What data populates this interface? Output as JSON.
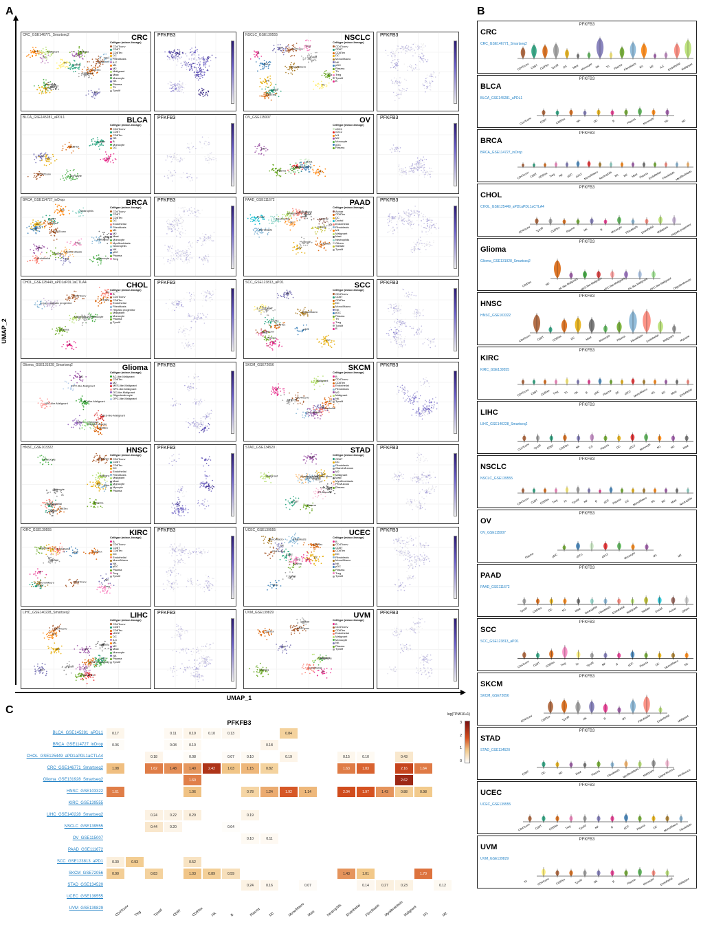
{
  "gene": "PFKFB3",
  "axes": {
    "x": "UMAP_1",
    "y": "UMAP_2"
  },
  "gradient": {
    "low": "#eeeeee",
    "mid": "#6b5fc7",
    "high": "#2a1a73"
  },
  "celltype_palette": {
    "CD4Tconv": "#a65628",
    "Treg": "#f781bf",
    "Tprolif": "#999999",
    "CD8T": "#1b9e77",
    "CD8Tex": "#d95f02",
    "NK": "#7570b3",
    "B": "#e7298a",
    "Plasma": "#66a61e",
    "DC": "#e6ab02",
    "Mono/Macro": "#a6761d",
    "Mast": "#666666",
    "Neutrophils": "#8dd3c7",
    "Endothelial": "#fb8072",
    "Fibroblasts": "#80b1d3",
    "Myofibroblasts": "#fdb462",
    "Malignant": "#b3de69",
    "pDC": "#377eb8",
    "Monocyte": "#4daf4a",
    "M1": "#ff7f00",
    "M2": "#984ea3",
    "ILC": "#bc80bd",
    "cDC1": "#ccebc5",
    "cDC2": "#e41a1c",
    "Th": "#ffed6f",
    "Acinar": "#8c564b",
    "Ductal": "#17becf",
    "Stellate": "#bcbd22",
    "Others": "#c7c7c7",
    "AC-like-Malignant": "#2ca02c",
    "OC-like-Malignant": "#9467bd",
    "MES-like-Malignant": "#d62728",
    "NPC-like-Malignant": "#ff9896",
    "OPC-like-Malignant": "#aec7e8",
    "Oligodendrocyte": "#98df8a",
    "Hepatic progenitor": "#c5b0d5",
    "Pit-Mucous": "#f7b6d2"
  },
  "panelA": [
    {
      "abbr": "CRC",
      "dataset": "CRC_GSE146771_Smartseq2",
      "celltypes": [
        "CD4Tconv",
        "CD8T",
        "CD8Tex",
        "DC",
        "Fibroblasts",
        "ILC",
        "M1",
        "M2",
        "Malignant",
        "Mast",
        "Monocyte",
        "NK",
        "Plasma",
        "Th",
        "Tprolif"
      ]
    },
    {
      "abbr": "NSCLC",
      "dataset": "NSCLC_GSE139555",
      "celltypes": [
        "CD4Tconv",
        "CD8T",
        "CD8Tex",
        "DC",
        "Mono/Macro",
        "NK",
        "pDC",
        "Plasma",
        "Th",
        "Treg",
        "Tprolif",
        "B"
      ]
    },
    {
      "abbr": "BLCA",
      "dataset": "BLCA_GSE145281_aPDL1",
      "celltypes": [
        "CD4Tconv",
        "CD8T",
        "CD8Tex",
        "NK",
        "B",
        "Monocyte",
        "DC"
      ]
    },
    {
      "abbr": "OV",
      "dataset": "OV_GSE115007",
      "celltypes": [
        "cDC1",
        "cDC2",
        "M1",
        "M2",
        "Monocyte",
        "pDC",
        "Plasma"
      ]
    },
    {
      "abbr": "BRCA",
      "dataset": "BRCA_GSE114727_inDrop",
      "celltypes": [
        "CD4Tconv",
        "CD8T",
        "CD8Tex",
        "DC",
        "Endothelial",
        "Fibroblasts",
        "M1",
        "M2",
        "Mast",
        "Monocyte",
        "Myofibroblasts",
        "Neutrophils",
        "NK",
        "pDC",
        "Plasma",
        "Treg"
      ]
    },
    {
      "abbr": "PAAD",
      "dataset": "PAAD_GSE111672",
      "celltypes": [
        "Acinar",
        "CD8Tex",
        "DC",
        "Ductal",
        "Endothelial",
        "Fibroblasts",
        "M1",
        "Malignant",
        "Mast",
        "Neutrophils",
        "Others",
        "Stellate",
        "Tprolif"
      ]
    },
    {
      "abbr": "CHOL",
      "dataset": "CHOL_GSE125449_aPD1aPDL1aCTLA4",
      "celltypes": [
        "B",
        "CD4Tconv",
        "CD8Tex",
        "Endothelial",
        "Fibroblasts",
        "Hepatic progenitor",
        "Malignant",
        "Monocyte",
        "Plasma",
        "Tprolif"
      ]
    },
    {
      "abbr": "SCC",
      "dataset": "SCC_GSE123813_aPD1",
      "celltypes": [
        "CD4Tconv",
        "CD8T",
        "CD8Tex",
        "DC",
        "Mono/Macro",
        "NK",
        "pDC",
        "Plasma",
        "Th",
        "Treg",
        "Tprolif",
        "B"
      ]
    },
    {
      "abbr": "Glioma",
      "dataset": "Glioma_GSE131928_Smartseq2",
      "celltypes": [
        "AC-like-Malignant",
        "CD8Tex",
        "M2",
        "MES-like-Malignant",
        "NPC-like-Malignant",
        "OC-like-Malignant",
        "Oligodendrocyte",
        "OPC-like-Malignant"
      ]
    },
    {
      "abbr": "SKCM",
      "dataset": "SKCM_GSE72056",
      "celltypes": [
        "B",
        "CD4Tconv",
        "CD8Tex",
        "Endothelial",
        "Fibroblasts",
        "M2",
        "Malignant",
        "NK",
        "Tprolif"
      ]
    },
    {
      "abbr": "HNSC",
      "dataset": "HNSC_GSE103322",
      "celltypes": [
        "CD4Tconv",
        "CD8T",
        "CD8Tex",
        "DC",
        "Endothelial",
        "Fibroblasts",
        "Malignant",
        "Mast",
        "Monocyte",
        "Myocyte",
        "Plasma"
      ]
    },
    {
      "abbr": "STAD",
      "dataset": "STAD_GSE134520",
      "celltypes": [
        "CD8T",
        "DC",
        "Fibroblasts",
        "Gland-Mucous",
        "M2",
        "Malignant",
        "Mast",
        "Myofibroblasts",
        "Pit-Mucous",
        "Plasma"
      ]
    },
    {
      "abbr": "KIRC",
      "dataset": "KIRC_GSE139555",
      "celltypes": [
        "B",
        "CD4Tconv",
        "CD8T",
        "CD8Tex",
        "DC",
        "Endothelial",
        "Mono/Macro",
        "NK",
        "pDC",
        "Plasma",
        "Treg",
        "Tprolif"
      ]
    },
    {
      "abbr": "UCEC",
      "dataset": "UCEC_GSE139555",
      "celltypes": [
        "B",
        "CD4Tconv",
        "CD8T",
        "CD8Tex",
        "DC",
        "Fibroblasts",
        "Mono/Macro",
        "NK",
        "pDC",
        "Plasma",
        "Treg",
        "Tprolif"
      ]
    },
    {
      "abbr": "LIHC",
      "dataset": "LIHC_GSE140228_Smartseq2",
      "celltypes": [
        "CD4Tconv",
        "CD8T",
        "CD8Tex",
        "cDC2",
        "DC",
        "ILC",
        "M1",
        "M2",
        "Mast",
        "Monocyte",
        "NK",
        "Plasma",
        "Tprolif"
      ]
    },
    {
      "abbr": "UVM",
      "dataset": "UVM_GSE139829",
      "celltypes": [
        "B",
        "CD4Tconv",
        "CD8Tex",
        "Endothelial",
        "Malignant",
        "Monocyte",
        "NK",
        "Plasma",
        "Tprolif"
      ]
    }
  ],
  "panelB": [
    {
      "abbr": "CRC",
      "dataset": "CRC_GSE146771_Smartseq2",
      "cats": [
        "CD4Tconv",
        "CD8T",
        "CD8Tex",
        "Tprolif",
        "DC",
        "Mast",
        "Monocyte",
        "NK",
        "Th",
        "Plasma",
        "Fibroblasts",
        "M1",
        "M2",
        "ILC",
        "Endothelial",
        "Malignant"
      ]
    },
    {
      "abbr": "BLCA",
      "dataset": "BLCA_GSE145281_aPDL1",
      "cats": [
        "CD4Tconv",
        "CD8T",
        "CD8Tex",
        "NK",
        "DC",
        "B",
        "Plasma",
        "Monocyte",
        "M1",
        "M2"
      ]
    },
    {
      "abbr": "BRCA",
      "dataset": "BRCA_GSE114727_inDrop",
      "cats": [
        "CD4Tconv",
        "CD8T",
        "CD8Tex",
        "Treg",
        "NK",
        "pDC",
        "cDC2",
        "Mono/Macro",
        "Neutrophils",
        "M1",
        "M2",
        "Mast",
        "Plasma",
        "Endothelial",
        "Fibroblasts",
        "Myofibroblasts"
      ]
    },
    {
      "abbr": "CHOL",
      "dataset": "CHOL_GSE125449_aPD1aPDL1aCTLA4",
      "cats": [
        "CD4Tconv",
        "Tprolif",
        "CD8Tex",
        "Plasma",
        "NK",
        "B",
        "Monocyte",
        "Fibroblasts",
        "Endothelial",
        "Malignant",
        "Hepatic progenitor"
      ]
    },
    {
      "abbr": "Glioma",
      "dataset": "Glioma_GSE131928_Smartseq2",
      "cats": [
        "CD8Tex",
        "M2",
        "AC-like-Malignant",
        "MES-like-Malignant",
        "NPC-like-Malignant",
        "OC-like-Malignant",
        "OPC-like-Malignant",
        "Oligodendrocyte"
      ]
    },
    {
      "abbr": "HNSC",
      "dataset": "HNSC_GSE103322",
      "cats": [
        "CD4Tconv",
        "CD8T",
        "CD8Tex",
        "DC",
        "Mast",
        "Monocyte",
        "Plasma",
        "Fibroblasts",
        "Endothelial",
        "Malignant",
        "Myocyte"
      ]
    },
    {
      "abbr": "KIRC",
      "dataset": "KIRC_GSE139555",
      "cats": [
        "CD4Tconv",
        "CD8T",
        "CD8Tex",
        "Treg",
        "Th",
        "NK",
        "B",
        "pDC",
        "Plasma",
        "DC",
        "cDC2",
        "Mono/Macro",
        "M1",
        "M2",
        "Mast",
        "Endothelial"
      ]
    },
    {
      "abbr": "LIHC",
      "dataset": "LIHC_GSE140228_Smartseq2",
      "cats": [
        "CD4Tconv",
        "Tprolif",
        "CD8T",
        "CD8Tex",
        "NK",
        "ILC",
        "Plasma",
        "DC",
        "cDC2",
        "Monocyte",
        "M1",
        "M2",
        "Mast"
      ]
    },
    {
      "abbr": "NSCLC",
      "dataset": "NSCLC_GSE139555",
      "cats": [
        "CD4Tconv",
        "CD8T",
        "CD8Tex",
        "Treg",
        "Th",
        "Tprolif",
        "NK",
        "B",
        "pDC",
        "Plasma",
        "DC",
        "Mono/Macro",
        "M1",
        "M2",
        "Mast",
        "Neutrophils"
      ]
    },
    {
      "abbr": "OV",
      "dataset": "OV_GSE115007",
      "cats": [
        "Plasma",
        "pDC",
        "cDC1",
        "cDC2",
        "Monocyte",
        "M1",
        "M2"
      ]
    },
    {
      "abbr": "PAAD",
      "dataset": "PAAD_GSE111672",
      "cats": [
        "Tprolif",
        "CD8Tex",
        "DC",
        "M1",
        "Mast",
        "Neutrophils",
        "Fibroblasts",
        "Endothelial",
        "Malignant",
        "Stellate",
        "Ductal",
        "Acinar",
        "Others"
      ]
    },
    {
      "abbr": "SCC",
      "dataset": "SCC_GSE123813_aPD1",
      "cats": [
        "CD4Tconv",
        "CD8T",
        "CD8Tex",
        "Treg",
        "Th",
        "Tprolif",
        "NK",
        "B",
        "pDC",
        "Plasma",
        "DC",
        "Mono/Macro",
        "M1"
      ]
    },
    {
      "abbr": "SKCM",
      "dataset": "SKCM_GSE72056",
      "cats": [
        "CD4Tconv",
        "CD8Tex",
        "Tprolif",
        "NK",
        "B",
        "M2",
        "Fibroblasts",
        "Endothelial",
        "Malignant"
      ]
    },
    {
      "abbr": "STAD",
      "dataset": "STAD_GSE134520",
      "cats": [
        "CD8T",
        "DC",
        "M2",
        "Mast",
        "Plasma",
        "Fibroblasts",
        "Myofibroblasts",
        "Malignant",
        "Gland-Mucous",
        "Pit-Mucous"
      ]
    },
    {
      "abbr": "UCEC",
      "dataset": "UCEC_GSE139555",
      "cats": [
        "CD4Tconv",
        "CD8T",
        "CD8Tex",
        "Treg",
        "Tprolif",
        "NK",
        "B",
        "pDC",
        "Plasma",
        "DC",
        "Mono/Macro",
        "Fibroblasts"
      ]
    },
    {
      "abbr": "UVM",
      "dataset": "UVM_GSE139829",
      "cats": [
        "Th",
        "CD4Tconv",
        "CD8Tex",
        "Tprolif",
        "NK",
        "B",
        "Plasma",
        "Monocyte",
        "Endothelial",
        "Malignant"
      ]
    }
  ],
  "panelC": {
    "title": "PFKFB3",
    "legend_title": "log(TPM/10+1)",
    "legend_ticks": [
      "3",
      "2",
      "1",
      "0"
    ],
    "columns": [
      "CD4Tconv",
      "Treg",
      "Tprolif",
      "CD8T",
      "CD8Tex",
      "NK",
      "B",
      "Plasma",
      "DC",
      "Mono/Macro",
      "Mast",
      "Neutrophils",
      "Endothelial",
      "Fibroblasts",
      "Myofibroblasts",
      "Malignant",
      "M1",
      "M2"
    ],
    "rows": [
      {
        "label": "BLCA_GSE145281_aPDL1",
        "vals": [
          0.17,
          null,
          null,
          0.11,
          0.19,
          0.1,
          0.13,
          null,
          null,
          0.84,
          null,
          null,
          null,
          null,
          null,
          null,
          null,
          null
        ]
      },
      {
        "label": "BRCA_GSE114727_inDrop",
        "vals": [
          0.06,
          null,
          null,
          0.08,
          0.1,
          null,
          null,
          null,
          0.18,
          null,
          null,
          null,
          null,
          null,
          null,
          null,
          null,
          null
        ]
      },
      {
        "label": "CHOL_GSE125449_aPD1aPDL1aCTLA4",
        "vals": [
          null,
          null,
          0.18,
          null,
          0.08,
          null,
          0.07,
          0.1,
          null,
          0.19,
          null,
          null,
          0.15,
          0.1,
          null,
          0.43,
          null,
          null
        ]
      },
      {
        "label": "CRC_GSE146771_Smartseq2",
        "vals": [
          1.08,
          null,
          1.62,
          1.48,
          1.4,
          2.42,
          1.03,
          1.15,
          0.82,
          null,
          null,
          null,
          1.63,
          1.83,
          null,
          2.16,
          1.64,
          null
        ]
      },
      {
        "label": "Glioma_GSE131928_Smartseq2",
        "vals": [
          null,
          null,
          null,
          null,
          1.6,
          null,
          null,
          null,
          null,
          null,
          null,
          null,
          null,
          null,
          null,
          2.62,
          null,
          null
        ]
      },
      {
        "label": "HNSC_GSE103322",
        "vals": [
          1.61,
          null,
          null,
          null,
          1.06,
          null,
          null,
          0.78,
          1.24,
          1.92,
          1.14,
          null,
          2.04,
          1.97,
          1.43,
          0.88,
          0.98,
          null
        ]
      },
      {
        "label": "KIRC_GSE139555",
        "vals": [
          null,
          null,
          null,
          null,
          null,
          null,
          null,
          null,
          null,
          null,
          null,
          null,
          null,
          null,
          null,
          null,
          null,
          null
        ]
      },
      {
        "label": "LIHC_GSE140228_Smartseq2",
        "vals": [
          null,
          null,
          0.24,
          0.22,
          0.29,
          null,
          null,
          0.19,
          null,
          null,
          null,
          null,
          null,
          null,
          null,
          null,
          null,
          null
        ]
      },
      {
        "label": "NSCLC_GSE139555",
        "vals": [
          null,
          null,
          0.44,
          0.2,
          null,
          null,
          0.04,
          null,
          null,
          null,
          null,
          null,
          null,
          null,
          null,
          null,
          null,
          null
        ]
      },
      {
        "label": "OV_GSE115007",
        "vals": [
          null,
          null,
          null,
          null,
          null,
          null,
          null,
          0.1,
          0.11,
          null,
          null,
          null,
          null,
          null,
          null,
          null,
          null,
          null
        ]
      },
      {
        "label": "PAAD_GSE111672",
        "vals": [
          null,
          null,
          null,
          null,
          null,
          null,
          null,
          null,
          null,
          null,
          null,
          null,
          null,
          null,
          null,
          null,
          null,
          null
        ]
      },
      {
        "label": "SCC_GSE123813_aPD1",
        "vals": [
          0.3,
          0.93,
          null,
          null,
          0.52,
          null,
          null,
          null,
          null,
          null,
          null,
          null,
          null,
          null,
          null,
          null,
          null,
          null
        ]
      },
      {
        "label": "SKCM_GSE72056",
        "vals": [
          0.9,
          null,
          0.83,
          null,
          1.03,
          0.89,
          0.59,
          null,
          null,
          null,
          null,
          null,
          1.43,
          1.01,
          null,
          null,
          1.7,
          null
        ]
      },
      {
        "label": "STAD_GSE134520",
        "vals": [
          null,
          null,
          null,
          null,
          null,
          null,
          null,
          0.24,
          0.16,
          null,
          0.07,
          null,
          null,
          0.14,
          0.27,
          0.23,
          null,
          0.12
        ]
      },
      {
        "label": "UCEC_GSE139555",
        "vals": [
          null,
          null,
          null,
          null,
          null,
          null,
          null,
          null,
          null,
          null,
          null,
          null,
          null,
          null,
          null,
          null,
          null,
          null
        ]
      },
      {
        "label": "UVM_GSE139829",
        "vals": [
          null,
          null,
          null,
          null,
          null,
          null,
          null,
          null,
          null,
          null,
          null,
          null,
          null,
          null,
          null,
          null,
          null,
          null
        ]
      }
    ],
    "color_scale": {
      "min": 0,
      "max": 3,
      "low": "#ffffff",
      "midlow": "#f2c98a",
      "mid": "#d44e1e",
      "high": "#7a1010"
    }
  }
}
